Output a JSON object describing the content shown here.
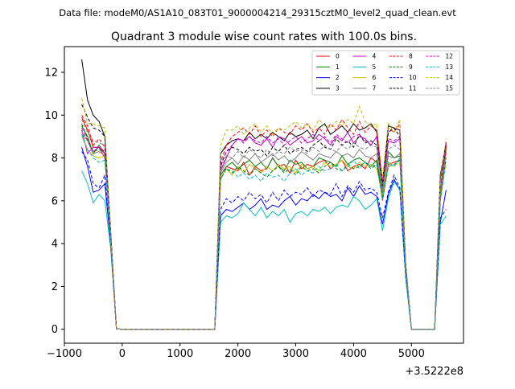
{
  "figure": {
    "suptitle": "Data file: modeM0/AS1A10_083T01_9000004214_29315cztM0_level2_quad_clean.evt",
    "offset_label": "+3.5222e8"
  },
  "chart_data": {
    "type": "line",
    "title": "Quadrant 3 module wise count rates with 100.0s bins.",
    "xlabel": "",
    "ylabel": "",
    "x_offset": 352220000,
    "xlim": [
      -1000,
      5900
    ],
    "ylim": [
      -0.65,
      13.2
    ],
    "xticks": [
      -1000,
      0,
      1000,
      2000,
      3000,
      4000,
      5000
    ],
    "xtick_labels": [
      "−1000",
      "0",
      "1000",
      "2000",
      "3000",
      "4000",
      "5000"
    ],
    "yticks": [
      0,
      2,
      4,
      6,
      8,
      10,
      12
    ],
    "ytick_labels": [
      "0",
      "2",
      "4",
      "6",
      "8",
      "10",
      "12"
    ],
    "grid": false,
    "legend_placement": "top-right",
    "legend_columns": 4,
    "x": [
      -700,
      -600,
      -500,
      -400,
      -300,
      -200,
      -100,
      0,
      100,
      200,
      300,
      400,
      500,
      600,
      700,
      800,
      900,
      1000,
      1100,
      1200,
      1300,
      1400,
      1500,
      1600,
      1700,
      1800,
      1900,
      2000,
      2100,
      2200,
      2300,
      2400,
      2500,
      2600,
      2700,
      2800,
      2900,
      3000,
      3100,
      3200,
      3300,
      3400,
      3500,
      3600,
      3700,
      3800,
      3900,
      4000,
      4100,
      4200,
      4300,
      4400,
      4500,
      4600,
      4700,
      4800,
      4900,
      5000,
      5100,
      5200,
      5300,
      5400,
      5500,
      5600
    ],
    "series": [
      {
        "name": "0",
        "color": "#ff0000",
        "style": "solid",
        "values": [
          9.9,
          9.3,
          8.5,
          8.5,
          8.0,
          4.2,
          0.02,
          0,
          0,
          0,
          0,
          0,
          0,
          0,
          0,
          0,
          0,
          0,
          0,
          0,
          0,
          0,
          0,
          0,
          7.0,
          7.6,
          7.5,
          7.4,
          7.8,
          7.2,
          7.6,
          7.4,
          7.5,
          8.0,
          7.6,
          7.7,
          7.3,
          7.9,
          7.5,
          7.7,
          7.6,
          7.8,
          7.9,
          7.5,
          7.7,
          7.9,
          7.4,
          7.6,
          7.7,
          7.5,
          8.0,
          7.8,
          6.0,
          7.7,
          7.8,
          7.9,
          2.8,
          0,
          0,
          0,
          0,
          0,
          6.3,
          8.6
        ]
      },
      {
        "name": "1",
        "color": "#008000",
        "style": "solid",
        "values": [
          9.5,
          9.0,
          8.2,
          8.6,
          8.2,
          4.2,
          0.02,
          0,
          0,
          0,
          0,
          0,
          0,
          0,
          0,
          0,
          0,
          0,
          0,
          0,
          0,
          0,
          0,
          0,
          7.2,
          7.6,
          7.8,
          7.5,
          7.7,
          7.9,
          7.6,
          7.8,
          7.5,
          8.0,
          7.6,
          7.4,
          7.9,
          7.7,
          7.8,
          7.5,
          7.6,
          8.0,
          7.9,
          7.8,
          7.6,
          8.1,
          7.7,
          7.9,
          8.0,
          7.8,
          7.6,
          7.9,
          6.3,
          8.3,
          8.0,
          8.1,
          2.9,
          0,
          0,
          0,
          0,
          0,
          6.2,
          8.5
        ]
      },
      {
        "name": "2",
        "color": "#0000ff",
        "style": "solid",
        "values": [
          8.5,
          7.6,
          6.4,
          6.5,
          6.8,
          4.0,
          0.02,
          0,
          0,
          0,
          0,
          0,
          0,
          0,
          0,
          0,
          0,
          0,
          0,
          0,
          0,
          0,
          0,
          0,
          5.3,
          5.6,
          5.5,
          5.7,
          5.9,
          5.6,
          5.8,
          6.1,
          5.6,
          5.8,
          5.7,
          6.0,
          6.2,
          5.8,
          6.1,
          6.0,
          6.3,
          6.1,
          6.4,
          6.2,
          6.3,
          6.0,
          6.6,
          6.2,
          6.7,
          6.3,
          6.4,
          6.2,
          4.9,
          6.3,
          7.0,
          6.5,
          2.5,
          0,
          0,
          0,
          0,
          0,
          5.0,
          6.5
        ]
      },
      {
        "name": "3",
        "color": "#000000",
        "style": "solid",
        "values": [
          12.6,
          10.7,
          10.0,
          9.7,
          9.0,
          4.6,
          0.02,
          0,
          0,
          0,
          0,
          0,
          0,
          0,
          0,
          0,
          0,
          0,
          0,
          0,
          0,
          0,
          0,
          0,
          8.2,
          8.6,
          8.8,
          8.9,
          8.8,
          9.2,
          8.9,
          9.1,
          8.9,
          9.2,
          9.0,
          8.8,
          9.2,
          9.0,
          9.1,
          9.3,
          8.9,
          9.4,
          9.6,
          9.1,
          9.3,
          9.5,
          9.2,
          9.6,
          9.3,
          9.4,
          9.6,
          9.2,
          6.9,
          9.5,
          9.4,
          9.3,
          3.1,
          0,
          0,
          0,
          0,
          0,
          7.2,
          8.7
        ]
      },
      {
        "name": "4",
        "color": "#bf00bf",
        "style": "solid",
        "values": [
          9.3,
          8.2,
          8.5,
          8.5,
          8.2,
          4.3,
          0.02,
          0,
          0,
          0,
          0,
          0,
          0,
          0,
          0,
          0,
          0,
          0,
          0,
          0,
          0,
          0,
          0,
          0,
          7.4,
          8.0,
          8.6,
          8.9,
          8.8,
          9.0,
          8.7,
          8.6,
          8.9,
          8.5,
          9.0,
          8.9,
          8.6,
          8.8,
          9.0,
          8.7,
          8.8,
          9.1,
          8.9,
          8.6,
          9.0,
          8.8,
          9.2,
          8.7,
          9.0,
          8.9,
          8.6,
          9.0,
          6.5,
          8.8,
          8.7,
          8.9,
          3.0,
          0,
          0,
          0,
          0,
          0,
          6.4,
          8.5
        ]
      },
      {
        "name": "5",
        "color": "#00bfbf",
        "style": "solid",
        "values": [
          7.4,
          6.8,
          5.9,
          6.3,
          6.0,
          3.8,
          0.02,
          0,
          0,
          0,
          0,
          0,
          0,
          0,
          0,
          0,
          0,
          0,
          0,
          0,
          0,
          0,
          0,
          0,
          5.0,
          5.3,
          5.2,
          5.4,
          5.9,
          5.6,
          5.3,
          5.7,
          5.2,
          5.5,
          5.3,
          5.6,
          5.0,
          5.4,
          5.5,
          5.3,
          5.6,
          5.5,
          5.7,
          5.4,
          5.7,
          5.8,
          5.7,
          6.2,
          6.0,
          5.6,
          5.8,
          6.1,
          4.6,
          6.1,
          6.9,
          6.5,
          2.4,
          0,
          0,
          0,
          0,
          0,
          4.9,
          5.3
        ]
      },
      {
        "name": "6",
        "color": "#bfbf00",
        "style": "solid",
        "values": [
          9.0,
          8.4,
          8.1,
          8.0,
          8.1,
          4.2,
          0.02,
          0,
          0,
          0,
          0,
          0,
          0,
          0,
          0,
          0,
          0,
          0,
          0,
          0,
          0,
          0,
          0,
          0,
          7.1,
          7.5,
          7.2,
          7.6,
          7.3,
          7.7,
          7.5,
          7.3,
          7.6,
          7.4,
          7.7,
          7.5,
          7.6,
          7.3,
          7.7,
          7.5,
          7.6,
          7.4,
          7.8,
          7.6,
          7.7,
          7.9,
          7.6,
          7.5,
          7.8,
          7.6,
          7.7,
          7.5,
          6.2,
          7.8,
          7.6,
          7.9,
          2.8,
          0,
          0,
          0,
          0,
          0,
          6.1,
          8.2
        ]
      },
      {
        "name": "7",
        "color": "#808080",
        "style": "solid",
        "values": [
          9.2,
          8.8,
          8.2,
          8.3,
          8.1,
          4.2,
          0.02,
          0,
          0,
          0,
          0,
          0,
          0,
          0,
          0,
          0,
          0,
          0,
          0,
          0,
          0,
          0,
          0,
          0,
          7.3,
          7.8,
          8.0,
          7.7,
          8.1,
          7.9,
          8.2,
          7.8,
          8.0,
          8.2,
          7.9,
          8.1,
          7.8,
          8.0,
          8.3,
          8.1,
          7.9,
          8.2,
          8.1,
          8.0,
          8.3,
          8.1,
          8.2,
          8.0,
          8.4,
          8.1,
          8.0,
          8.2,
          6.4,
          8.1,
          8.0,
          8.2,
          2.9,
          0,
          0,
          0,
          0,
          0,
          6.3,
          8.3
        ]
      },
      {
        "name": "8",
        "color": "#ff0000",
        "style": "dashed",
        "values": [
          10.0,
          9.5,
          8.6,
          8.9,
          8.5,
          4.3,
          0.02,
          0,
          0,
          0,
          0,
          0,
          0,
          0,
          0,
          0,
          0,
          0,
          0,
          0,
          0,
          0,
          0,
          0,
          7.8,
          8.6,
          9.0,
          9.2,
          9.4,
          9.1,
          9.5,
          9.0,
          9.3,
          9.0,
          9.4,
          9.2,
          9.1,
          9.5,
          9.3,
          9.6,
          9.2,
          9.4,
          9.1,
          9.6,
          9.3,
          9.8,
          9.4,
          9.1,
          9.7,
          9.2,
          9.5,
          9.3,
          6.8,
          9.4,
          9.2,
          9.6,
          3.0,
          0,
          0,
          0,
          0,
          0,
          6.8,
          8.8
        ]
      },
      {
        "name": "9",
        "color": "#008000",
        "style": "dashed",
        "values": [
          9.6,
          8.9,
          8.3,
          8.4,
          8.2,
          4.2,
          0.02,
          0,
          0,
          0,
          0,
          0,
          0,
          0,
          0,
          0,
          0,
          0,
          0,
          0,
          0,
          0,
          0,
          0,
          7.0,
          7.5,
          7.3,
          7.6,
          7.4,
          7.2,
          7.5,
          7.3,
          7.1,
          7.4,
          7.6,
          7.3,
          7.5,
          7.2,
          7.6,
          7.4,
          7.5,
          7.3,
          7.6,
          7.8,
          7.5,
          7.4,
          7.7,
          7.5,
          7.6,
          7.8,
          7.5,
          7.7,
          6.1,
          7.6,
          7.7,
          7.9,
          2.8,
          0,
          0,
          0,
          0,
          0,
          6.0,
          8.0
        ]
      },
      {
        "name": "10",
        "color": "#0000ff",
        "style": "dashed",
        "values": [
          8.3,
          7.9,
          6.8,
          6.6,
          7.2,
          4.0,
          0.02,
          0,
          0,
          0,
          0,
          0,
          0,
          0,
          0,
          0,
          0,
          0,
          0,
          0,
          0,
          0,
          0,
          0,
          5.6,
          6.1,
          5.9,
          6.2,
          6.0,
          6.4,
          6.1,
          6.3,
          5.9,
          6.4,
          6.0,
          6.5,
          6.2,
          6.4,
          6.3,
          6.6,
          6.2,
          6.5,
          6.4,
          6.3,
          6.8,
          6.2,
          6.7,
          6.4,
          6.9,
          6.5,
          6.6,
          6.4,
          5.2,
          6.4,
          7.2,
          6.6,
          2.6,
          0,
          0,
          0,
          0,
          0,
          5.2,
          5.6
        ]
      },
      {
        "name": "11",
        "color": "#000000",
        "style": "dashed",
        "values": [
          10.5,
          9.9,
          9.4,
          9.3,
          9.0,
          4.5,
          0.02,
          0,
          0,
          0,
          0,
          0,
          0,
          0,
          0,
          0,
          0,
          0,
          0,
          0,
          0,
          0,
          0,
          0,
          7.6,
          8.3,
          8.5,
          8.4,
          8.2,
          8.5,
          8.3,
          8.4,
          8.1,
          8.5,
          8.3,
          8.6,
          8.2,
          8.4,
          8.5,
          8.3,
          8.6,
          8.8,
          8.5,
          8.4,
          8.9,
          8.6,
          8.8,
          8.5,
          9.1,
          8.7,
          8.8,
          8.6,
          6.7,
          9.2,
          9.4,
          9.0,
          3.0,
          0,
          0,
          0,
          0,
          0,
          6.9,
          8.4
        ]
      },
      {
        "name": "12",
        "color": "#bf00bf",
        "style": "dashed",
        "values": [
          9.4,
          8.8,
          8.3,
          8.5,
          8.3,
          4.3,
          0.02,
          0,
          0,
          0,
          0,
          0,
          0,
          0,
          0,
          0,
          0,
          0,
          0,
          0,
          0,
          0,
          0,
          0,
          7.7,
          8.3,
          8.6,
          8.9,
          8.7,
          9.0,
          8.8,
          8.7,
          9.0,
          8.7,
          8.9,
          8.6,
          8.8,
          9.0,
          8.7,
          8.9,
          9.1,
          8.8,
          9.0,
          8.7,
          9.1,
          8.9,
          8.7,
          9.0,
          9.1,
          8.8,
          8.6,
          9.0,
          6.6,
          8.9,
          8.8,
          9.0,
          3.0,
          0,
          0,
          0,
          0,
          0,
          6.5,
          8.6
        ]
      },
      {
        "name": "13",
        "color": "#00bfbf",
        "style": "dashed",
        "values": [
          9.1,
          8.4,
          8.0,
          7.8,
          7.9,
          4.1,
          0.02,
          0,
          0,
          0,
          0,
          0,
          0,
          0,
          0,
          0,
          0,
          0,
          0,
          0,
          0,
          0,
          0,
          0,
          7.0,
          7.5,
          7.4,
          7.1,
          7.3,
          7.0,
          7.2,
          6.9,
          7.3,
          7.1,
          7.2,
          6.9,
          7.3,
          7.5,
          7.2,
          7.4,
          7.3,
          7.6,
          7.4,
          7.5,
          7.7,
          7.4,
          7.6,
          7.9,
          7.5,
          7.8,
          7.6,
          7.7,
          6.0,
          7.8,
          7.6,
          8.0,
          2.8,
          0,
          0,
          0,
          0,
          0,
          6.0,
          7.8
        ]
      },
      {
        "name": "14",
        "color": "#bfbf00",
        "style": "dashed",
        "values": [
          10.8,
          9.6,
          9.6,
          9.5,
          9.4,
          4.5,
          0.02,
          0,
          0,
          0,
          0,
          0,
          0,
          0,
          0,
          0,
          0,
          0,
          0,
          0,
          0,
          0,
          0,
          0,
          8.6,
          9.3,
          9.3,
          9.5,
          9.1,
          9.4,
          9.6,
          9.2,
          9.5,
          9.1,
          9.4,
          9.3,
          9.5,
          9.7,
          9.4,
          9.6,
          9.3,
          9.8,
          9.5,
          9.4,
          9.7,
          9.5,
          9.8,
          9.6,
          10.4,
          9.7,
          9.5,
          9.6,
          7.0,
          9.6,
          9.2,
          9.8,
          3.1,
          0,
          0,
          0,
          0,
          0,
          7.0,
          8.9
        ]
      },
      {
        "name": "15",
        "color": "#808080",
        "style": "dashed",
        "values": [
          9.8,
          9.2,
          8.8,
          8.7,
          8.6,
          4.3,
          0.02,
          0,
          0,
          0,
          0,
          0,
          0,
          0,
          0,
          0,
          0,
          0,
          0,
          0,
          0,
          0,
          0,
          0,
          7.5,
          8.1,
          8.0,
          8.3,
          8.0,
          8.4,
          8.2,
          8.0,
          8.4,
          8.1,
          8.3,
          8.2,
          8.5,
          8.3,
          8.4,
          8.2,
          8.5,
          8.3,
          8.6,
          8.4,
          8.3,
          8.6,
          8.4,
          8.7,
          8.5,
          8.4,
          8.6,
          8.5,
          6.6,
          8.4,
          8.6,
          8.4,
          2.9,
          0,
          0,
          0,
          0,
          0,
          6.4,
          8.3
        ]
      }
    ]
  }
}
